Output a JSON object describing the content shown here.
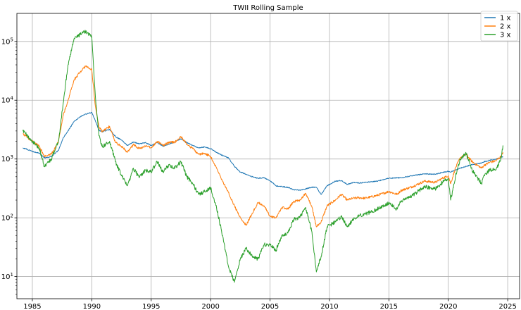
{
  "chart_data": {
    "type": "line",
    "title": "TWII Rolling Sample",
    "xlabel": "",
    "ylabel": "",
    "yscale": "log",
    "xlim": [
      1983.7,
      2026.0
    ],
    "ylim": [
      4.2,
      300000
    ],
    "grid": true,
    "legend_position": "top-right",
    "x_ticks": [
      1985,
      1990,
      1995,
      2000,
      2005,
      2010,
      2015,
      2020,
      2025
    ],
    "x_tick_labels": [
      "1985",
      "1990",
      "1995",
      "2000",
      "2005",
      "2010",
      "2015",
      "2020",
      "2025"
    ],
    "y_ticks": [
      10,
      100,
      1000,
      10000,
      100000
    ],
    "y_tick_labels": [
      {
        "base": "10",
        "exp": "1"
      },
      {
        "base": "10",
        "exp": "2"
      },
      {
        "base": "10",
        "exp": "3"
      },
      {
        "base": "10",
        "exp": "4"
      },
      {
        "base": "10",
        "exp": "5"
      }
    ],
    "series": [
      {
        "name": "1 x",
        "color": "#1f77b4",
        "x": [
          1984.2,
          1985.0,
          1985.6,
          1986.0,
          1986.6,
          1987.2,
          1987.6,
          1988.0,
          1988.5,
          1989.0,
          1989.5,
          1990.0,
          1990.3,
          1990.6,
          1990.9,
          1991.5,
          1992.0,
          1992.5,
          1993.0,
          1993.5,
          1994.0,
          1994.5,
          1995.0,
          1995.5,
          1996.0,
          1996.5,
          1997.0,
          1997.5,
          1998.0,
          1998.5,
          1999.0,
          1999.5,
          2000.0,
          2000.5,
          2001.0,
          2001.5,
          2002.0,
          2002.5,
          2003.0,
          2003.5,
          2004.0,
          2004.5,
          2005.0,
          2005.5,
          2006.0,
          2006.5,
          2007.0,
          2007.5,
          2008.0,
          2008.5,
          2008.9,
          2009.3,
          2009.8,
          2010.5,
          2011.0,
          2011.5,
          2012.0,
          2012.5,
          2013.0,
          2014.0,
          2015.0,
          2015.7,
          2016.0,
          2017.0,
          2018.0,
          2018.9,
          2019.5,
          2020.0,
          2020.2,
          2020.6,
          2021.0,
          2021.5,
          2022.0,
          2022.8,
          2023.0,
          2023.5,
          2024.0,
          2024.4,
          2024.6
        ],
        "values": [
          1550,
          1350,
          1250,
          1050,
          1100,
          1400,
          2300,
          3000,
          4300,
          5200,
          5800,
          6200,
          4500,
          3100,
          2900,
          3200,
          2400,
          2100,
          1700,
          1950,
          1800,
          1900,
          1700,
          1900,
          1650,
          1800,
          1950,
          2200,
          1900,
          1700,
          1550,
          1600,
          1500,
          1300,
          1150,
          1050,
          750,
          600,
          550,
          500,
          470,
          480,
          430,
          350,
          340,
          330,
          300,
          295,
          310,
          330,
          330,
          250,
          350,
          420,
          430,
          370,
          400,
          390,
          400,
          420,
          470,
          480,
          480,
          520,
          560,
          550,
          590,
          620,
          600,
          650,
          700,
          750,
          800,
          850,
          900,
          950,
          1000,
          1050,
          1100
        ]
      },
      {
        "name": "2 x",
        "color": "#ff7f0e",
        "x": [
          1984.2,
          1985.0,
          1985.6,
          1986.0,
          1986.6,
          1987.2,
          1987.6,
          1988.0,
          1988.5,
          1989.0,
          1989.5,
          1990.0,
          1990.3,
          1990.6,
          1990.9,
          1991.5,
          1992.0,
          1992.5,
          1993.0,
          1993.5,
          1994.0,
          1994.5,
          1995.0,
          1995.5,
          1996.0,
          1996.5,
          1997.0,
          1997.5,
          1998.0,
          1998.5,
          1999.0,
          1999.5,
          2000.0,
          2000.5,
          2001.0,
          2001.5,
          2002.0,
          2002.5,
          2003.0,
          2003.5,
          2004.0,
          2004.5,
          2005.0,
          2005.5,
          2006.0,
          2006.5,
          2007.0,
          2007.5,
          2008.0,
          2008.5,
          2008.9,
          2009.3,
          2009.8,
          2010.5,
          2011.0,
          2011.5,
          2012.0,
          2012.5,
          2013.0,
          2014.0,
          2015.0,
          2015.7,
          2016.0,
          2017.0,
          2018.0,
          2018.9,
          2019.5,
          2020.0,
          2020.2,
          2020.6,
          2021.0,
          2021.5,
          2022.0,
          2022.8,
          2023.0,
          2023.5,
          2024.0,
          2024.4,
          2024.6
        ],
        "values": [
          2700,
          2000,
          1650,
          1100,
          1200,
          2000,
          5500,
          10000,
          22000,
          30000,
          38000,
          33000,
          8000,
          3500,
          2900,
          3600,
          1900,
          1650,
          1300,
          1750,
          1500,
          1650,
          1550,
          2000,
          1700,
          1900,
          1950,
          2400,
          1800,
          1500,
          1200,
          1250,
          1100,
          700,
          420,
          270,
          160,
          100,
          75,
          120,
          180,
          160,
          105,
          100,
          150,
          140,
          190,
          200,
          260,
          160,
          70,
          85,
          160,
          200,
          250,
          200,
          215,
          220,
          215,
          240,
          280,
          250,
          290,
          340,
          420,
          400,
          470,
          520,
          380,
          700,
          1050,
          1200,
          900,
          700,
          780,
          880,
          930,
          1100,
          1300
        ]
      },
      {
        "name": "3 x",
        "color": "#2ca02c",
        "x": [
          1984.2,
          1985.0,
          1985.6,
          1986.0,
          1986.6,
          1987.2,
          1987.6,
          1988.0,
          1988.5,
          1989.0,
          1989.5,
          1990.0,
          1990.3,
          1990.6,
          1990.9,
          1991.5,
          1992.0,
          1992.5,
          1993.0,
          1993.5,
          1994.0,
          1994.5,
          1995.0,
          1995.5,
          1996.0,
          1996.5,
          1997.0,
          1997.5,
          1998.0,
          1998.5,
          1999.0,
          1999.5,
          2000.0,
          2000.5,
          2001.0,
          2001.5,
          2002.0,
          2002.5,
          2003.0,
          2003.5,
          2004.0,
          2004.5,
          2005.0,
          2005.5,
          2006.0,
          2006.5,
          2007.0,
          2007.5,
          2008.0,
          2008.5,
          2008.9,
          2009.3,
          2009.8,
          2010.5,
          2011.0,
          2011.5,
          2012.0,
          2012.5,
          2013.0,
          2014.0,
          2015.0,
          2015.7,
          2016.0,
          2017.0,
          2018.0,
          2018.9,
          2019.5,
          2020.0,
          2020.2,
          2020.6,
          2021.0,
          2021.5,
          2022.0,
          2022.8,
          2023.0,
          2023.5,
          2024.0,
          2024.4,
          2024.6
        ],
        "values": [
          3000,
          2000,
          1500,
          750,
          1000,
          2000,
          9000,
          40000,
          110000,
          130000,
          150000,
          120000,
          12000,
          2500,
          1600,
          2000,
          900,
          520,
          350,
          700,
          480,
          650,
          600,
          900,
          600,
          800,
          700,
          900,
          500,
          380,
          250,
          280,
          320,
          150,
          50,
          15,
          8,
          20,
          30,
          22,
          20,
          35,
          35,
          28,
          50,
          55,
          95,
          100,
          150,
          60,
          12,
          22,
          70,
          85,
          105,
          70,
          95,
          110,
          115,
          140,
          180,
          140,
          190,
          240,
          340,
          310,
          400,
          470,
          200,
          500,
          1000,
          1250,
          650,
          380,
          530,
          650,
          650,
          950,
          1700
        ]
      }
    ]
  }
}
